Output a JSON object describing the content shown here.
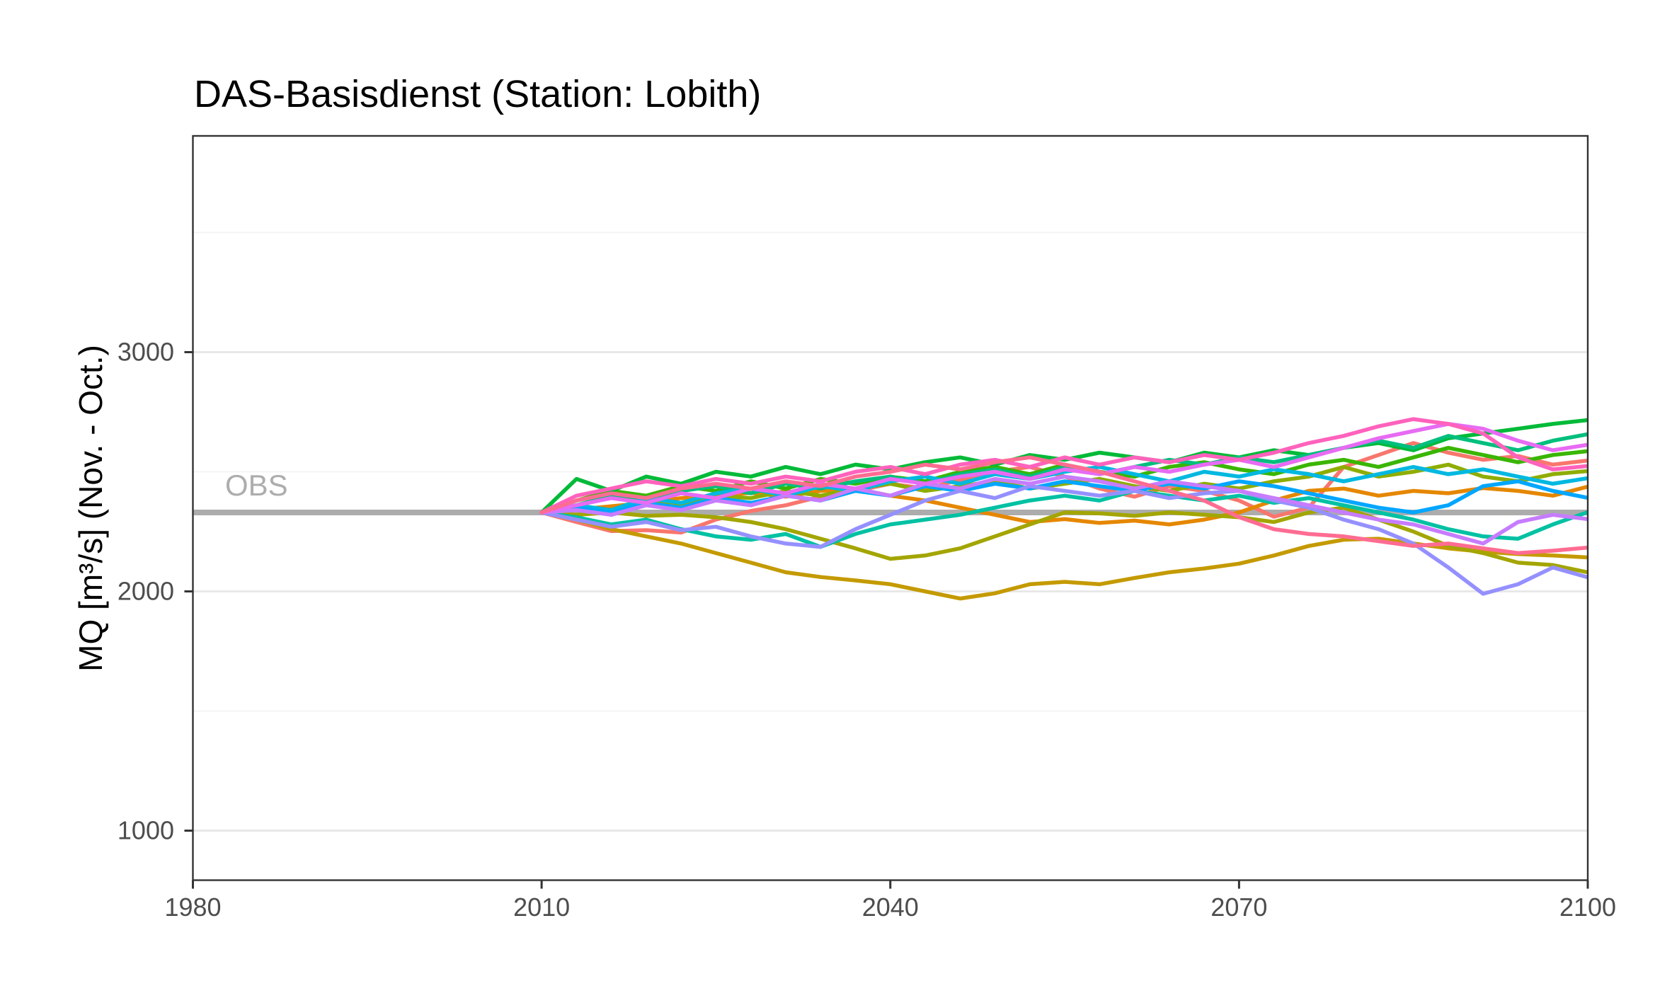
{
  "chart_data": {
    "type": "line",
    "title": "DAS-Basisdienst (Station: Lobith)",
    "xlabel": "",
    "ylabel": "MQ [m³/s] (Nov. - Oct.)",
    "xlim": [
      1980,
      2100
    ],
    "ylim": [
      790,
      3900
    ],
    "x_ticks": [
      1980,
      2010,
      2040,
      2070,
      2100
    ],
    "y_ticks": [
      1000,
      2000,
      3000
    ],
    "y_minor_ticks": [
      1500,
      2500,
      3500
    ],
    "grid": "horizontal-only",
    "legend": "none",
    "reference_line": {
      "label": "OBS",
      "value": 2330
    },
    "x": [
      2010,
      2013,
      2016,
      2019,
      2022,
      2025,
      2028,
      2031,
      2034,
      2037,
      2040,
      2043,
      2046,
      2049,
      2052,
      2055,
      2058,
      2061,
      2064,
      2067,
      2070,
      2073,
      2076,
      2079,
      2082,
      2085,
      2088,
      2091,
      2094,
      2097,
      2100
    ],
    "series": [
      {
        "name": "member-salmon",
        "color": "#F8766D",
        "values": [
          2330,
          2290,
          2252,
          2256,
          2246,
          2300,
          2336,
          2360,
          2396,
          2420,
          2450,
          2430,
          2466,
          2500,
          2520,
          2480,
          2430,
          2396,
          2440,
          2420,
          2380,
          2312,
          2350,
          2520,
          2570,
          2620,
          2580,
          2550,
          2566,
          2530,
          2547
        ]
      },
      {
        "name": "member-orange",
        "color": "#E58700",
        "values": [
          2330,
          2342,
          2356,
          2370,
          2390,
          2400,
          2412,
          2396,
          2420,
          2430,
          2400,
          2380,
          2350,
          2320,
          2290,
          2302,
          2286,
          2296,
          2280,
          2300,
          2330,
          2380,
          2420,
          2430,
          2400,
          2420,
          2410,
          2432,
          2420,
          2400,
          2438
        ]
      },
      {
        "name": "member-dark-yellow",
        "color": "#C49A00",
        "values": [
          2330,
          2300,
          2260,
          2230,
          2200,
          2160,
          2120,
          2080,
          2060,
          2046,
          2030,
          2000,
          1970,
          1992,
          2030,
          2040,
          2030,
          2056,
          2080,
          2096,
          2116,
          2150,
          2190,
          2216,
          2220,
          2200,
          2180,
          2166,
          2156,
          2150,
          2142
        ]
      },
      {
        "name": "member-olive",
        "color": "#A3A500",
        "values": [
          2330,
          2320,
          2330,
          2316,
          2320,
          2310,
          2290,
          2260,
          2220,
          2180,
          2136,
          2150,
          2180,
          2230,
          2280,
          2330,
          2326,
          2316,
          2330,
          2320,
          2310,
          2290,
          2330,
          2350,
          2300,
          2250,
          2190,
          2160,
          2120,
          2110,
          2080
        ]
      },
      {
        "name": "member-yellow-green",
        "color": "#8FAD00",
        "values": [
          2330,
          2350,
          2340,
          2380,
          2360,
          2400,
          2390,
          2420,
          2400,
          2430,
          2450,
          2420,
          2440,
          2460,
          2430,
          2450,
          2470,
          2440,
          2420,
          2450,
          2430,
          2460,
          2480,
          2520,
          2480,
          2500,
          2530,
          2480,
          2460,
          2490,
          2503
        ]
      },
      {
        "name": "member-bright-green",
        "color": "#39B600",
        "values": [
          2330,
          2380,
          2420,
          2400,
          2440,
          2420,
          2460,
          2430,
          2470,
          2450,
          2480,
          2460,
          2500,
          2520,
          2490,
          2530,
          2500,
          2480,
          2520,
          2540,
          2510,
          2490,
          2530,
          2550,
          2520,
          2560,
          2600,
          2570,
          2540,
          2570,
          2586
        ]
      },
      {
        "name": "member-green",
        "color": "#00BA38",
        "values": [
          2330,
          2470,
          2420,
          2480,
          2450,
          2500,
          2480,
          2520,
          2490,
          2530,
          2510,
          2540,
          2560,
          2530,
          2570,
          2550,
          2580,
          2560,
          2540,
          2580,
          2560,
          2590,
          2570,
          2600,
          2620,
          2590,
          2640,
          2660,
          2680,
          2700,
          2716
        ]
      },
      {
        "name": "member-emerald",
        "color": "#00BF7D",
        "values": [
          2330,
          2360,
          2400,
          2380,
          2420,
          2440,
          2410,
          2450,
          2430,
          2460,
          2480,
          2450,
          2490,
          2510,
          2480,
          2520,
          2490,
          2520,
          2550,
          2530,
          2560,
          2540,
          2570,
          2600,
          2630,
          2600,
          2650,
          2620,
          2590,
          2630,
          2657
        ]
      },
      {
        "name": "member-teal",
        "color": "#00C1A3",
        "values": [
          2330,
          2310,
          2280,
          2300,
          2260,
          2230,
          2216,
          2240,
          2186,
          2240,
          2280,
          2300,
          2320,
          2350,
          2380,
          2400,
          2380,
          2420,
          2400,
          2380,
          2400,
          2370,
          2390,
          2360,
          2330,
          2300,
          2260,
          2230,
          2220,
          2280,
          2331
        ]
      },
      {
        "name": "member-cyan",
        "color": "#00B8E0",
        "values": [
          2330,
          2360,
          2340,
          2390,
          2370,
          2410,
          2430,
          2400,
          2440,
          2420,
          2460,
          2480,
          2450,
          2490,
          2470,
          2500,
          2520,
          2490,
          2460,
          2500,
          2480,
          2510,
          2490,
          2460,
          2490,
          2520,
          2490,
          2510,
          2480,
          2450,
          2473
        ]
      },
      {
        "name": "member-sky-blue",
        "color": "#00A6FF",
        "values": [
          2330,
          2350,
          2330,
          2370,
          2350,
          2390,
          2370,
          2400,
          2380,
          2420,
          2400,
          2440,
          2420,
          2450,
          2430,
          2460,
          2440,
          2420,
          2450,
          2430,
          2460,
          2440,
          2410,
          2380,
          2350,
          2330,
          2360,
          2440,
          2460,
          2420,
          2391
        ]
      },
      {
        "name": "member-periwinkle",
        "color": "#9590FF",
        "values": [
          2330,
          2300,
          2270,
          2290,
          2256,
          2270,
          2230,
          2200,
          2186,
          2260,
          2320,
          2380,
          2420,
          2390,
          2440,
          2420,
          2400,
          2420,
          2390,
          2410,
          2420,
          2380,
          2350,
          2300,
          2260,
          2200,
          2100,
          1990,
          2030,
          2100,
          2059
        ]
      },
      {
        "name": "member-violet",
        "color": "#C77CFF",
        "values": [
          2330,
          2340,
          2320,
          2360,
          2340,
          2380,
          2360,
          2400,
          2380,
          2430,
          2400,
          2450,
          2430,
          2470,
          2450,
          2480,
          2460,
          2430,
          2460,
          2440,
          2420,
          2390,
          2360,
          2330,
          2300,
          2280,
          2240,
          2200,
          2290,
          2320,
          2302
        ]
      },
      {
        "name": "member-magenta",
        "color": "#E76BF3",
        "values": [
          2330,
          2360,
          2390,
          2370,
          2410,
          2390,
          2430,
          2410,
          2450,
          2430,
          2470,
          2450,
          2480,
          2500,
          2470,
          2510,
          2490,
          2520,
          2500,
          2530,
          2550,
          2520,
          2560,
          2600,
          2640,
          2670,
          2700,
          2680,
          2630,
          2590,
          2613
        ]
      },
      {
        "name": "member-hot-pink",
        "color": "#FF62BC",
        "values": [
          2330,
          2400,
          2430,
          2460,
          2440,
          2470,
          2450,
          2480,
          2460,
          2500,
          2520,
          2490,
          2530,
          2550,
          2520,
          2560,
          2530,
          2560,
          2540,
          2570,
          2550,
          2580,
          2620,
          2650,
          2690,
          2720,
          2700,
          2660,
          2560,
          2510,
          2524
        ]
      },
      {
        "name": "member-rose",
        "color": "#FF6C92",
        "values": [
          2330,
          2380,
          2410,
          2390,
          2430,
          2450,
          2430,
          2460,
          2440,
          2480,
          2500,
          2530,
          2510,
          2540,
          2560,
          2530,
          2500,
          2460,
          2420,
          2380,
          2310,
          2260,
          2240,
          2230,
          2210,
          2190,
          2200,
          2180,
          2160,
          2170,
          2183
        ]
      }
    ]
  },
  "colors": {
    "title": "#000000",
    "axis_text": "#4D4D4D",
    "axis_tick": "#333333",
    "panel_border": "#333333",
    "grid_major": "#E8E8E8",
    "grid_minor": "#F4F4F4",
    "obs_line": "#ACACAC",
    "obs_label": "#ADADAD",
    "background": "#FFFFFF"
  }
}
